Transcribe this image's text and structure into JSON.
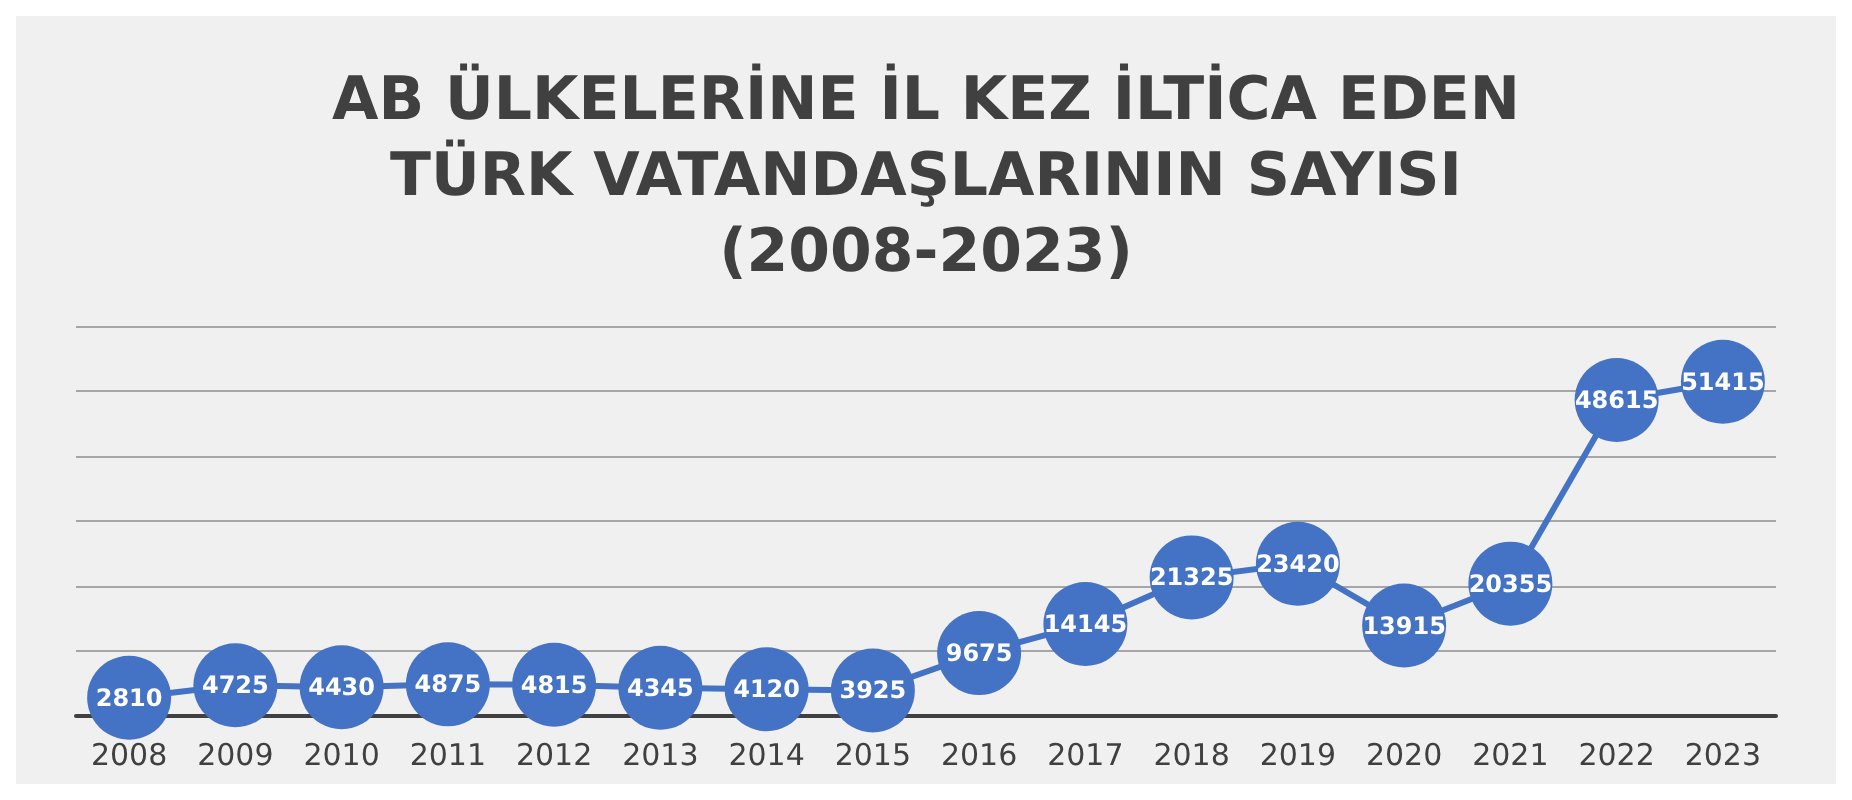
{
  "chart_data": {
    "type": "line",
    "title": "AB ÜLKELERİNE İL KEZ İLTİCA EDEN\nTÜRK VATANDAŞLARININ SAYISI\n(2008-2023)",
    "categories": [
      "2008",
      "2009",
      "2010",
      "2011",
      "2012",
      "2013",
      "2014",
      "2015",
      "2016",
      "2017",
      "2018",
      "2019",
      "2020",
      "2021",
      "2022",
      "2023"
    ],
    "series": [
      {
        "color": "#4472c4",
        "values": [
          2810,
          4725,
          4430,
          4875,
          4815,
          4345,
          4120,
          3925,
          9675,
          14145,
          21325,
          23420,
          13915,
          20355,
          48615,
          51415
        ]
      }
    ],
    "ylim": [
      0,
      60000
    ],
    "yticks": [
      {
        "value": 0,
        "label": null
      },
      {
        "value": 10000,
        "label": null
      },
      {
        "value": 20000,
        "label": null
      },
      {
        "value": 30000,
        "label": null
      },
      {
        "value": 40000,
        "label": null
      },
      {
        "value": 50000,
        "label": null
      },
      {
        "value": 60000,
        "label": null
      }
    ],
    "tick_labels": "x",
    "grid": "y",
    "data_labels": true,
    "marker": "circle",
    "line_style": "solid"
  }
}
